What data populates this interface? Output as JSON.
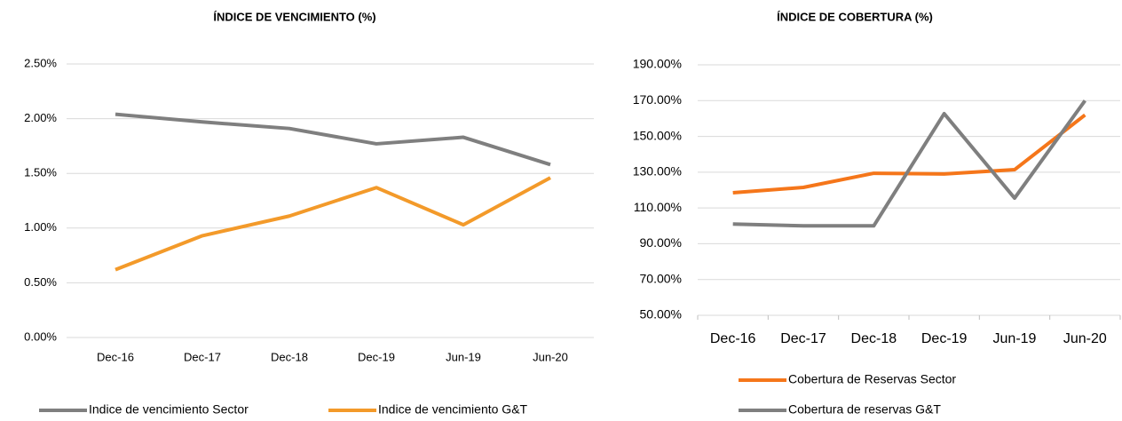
{
  "chart_data": [
    {
      "type": "line",
      "title": "ÍNDICE DE VENCIMIENTO (%)",
      "categories": [
        "Dec-16",
        "Dec-17",
        "Dec-18",
        "Dec-19",
        "Jun-19",
        "Jun-20"
      ],
      "series": [
        {
          "name": "Indice de vencimiento Sector",
          "color": "#7f7f7f",
          "values": [
            2.04,
            1.97,
            1.91,
            1.77,
            1.83,
            1.58
          ]
        },
        {
          "name": "Indice de vencimiento G&T",
          "color": "#f39a2a",
          "values": [
            0.62,
            0.93,
            1.11,
            1.37,
            1.03,
            1.46
          ]
        }
      ],
      "ylim": [
        0,
        2.5
      ],
      "yticks": [
        {
          "value": 0,
          "label": "0.00%"
        },
        {
          "value": 0.5,
          "label": "0.50%"
        },
        {
          "value": 1,
          "label": "1.00%"
        },
        {
          "value": 1.5,
          "label": "1.50%"
        },
        {
          "value": 2,
          "label": "2.00%"
        },
        {
          "value": 2.5,
          "label": "2.50%"
        }
      ],
      "grid": true,
      "legend": "bottom"
    },
    {
      "type": "line",
      "title": "ÍNDICE DE COBERTURA (%)",
      "categories": [
        "Dec-16",
        "Dec-17",
        "Dec-18",
        "Dec-19",
        "Jun-19",
        "Jun-20"
      ],
      "series": [
        {
          "name": "Cobertura de Reservas Sector",
          "color": "#f5761a",
          "values": [
            118.5,
            121.5,
            129.4,
            129,
            131.4,
            162
          ]
        },
        {
          "name": "Cobertura de reservas G&T",
          "color": "#7f7f7f",
          "values": [
            101,
            100,
            100,
            162.7,
            115.5,
            170
          ]
        }
      ],
      "ylim": [
        50,
        190
      ],
      "yticks": [
        {
          "value": 50,
          "label": "50.00%"
        },
        {
          "value": 70,
          "label": "70.00%"
        },
        {
          "value": 90,
          "label": "90.00%"
        },
        {
          "value": 110,
          "label": "110.00%"
        },
        {
          "value": 130,
          "label": "130.00%"
        },
        {
          "value": 150,
          "label": "150.00%"
        },
        {
          "value": 170,
          "label": "170.00%"
        },
        {
          "value": 190,
          "label": "190.00%"
        }
      ],
      "grid": true,
      "legend": "bottom"
    }
  ]
}
